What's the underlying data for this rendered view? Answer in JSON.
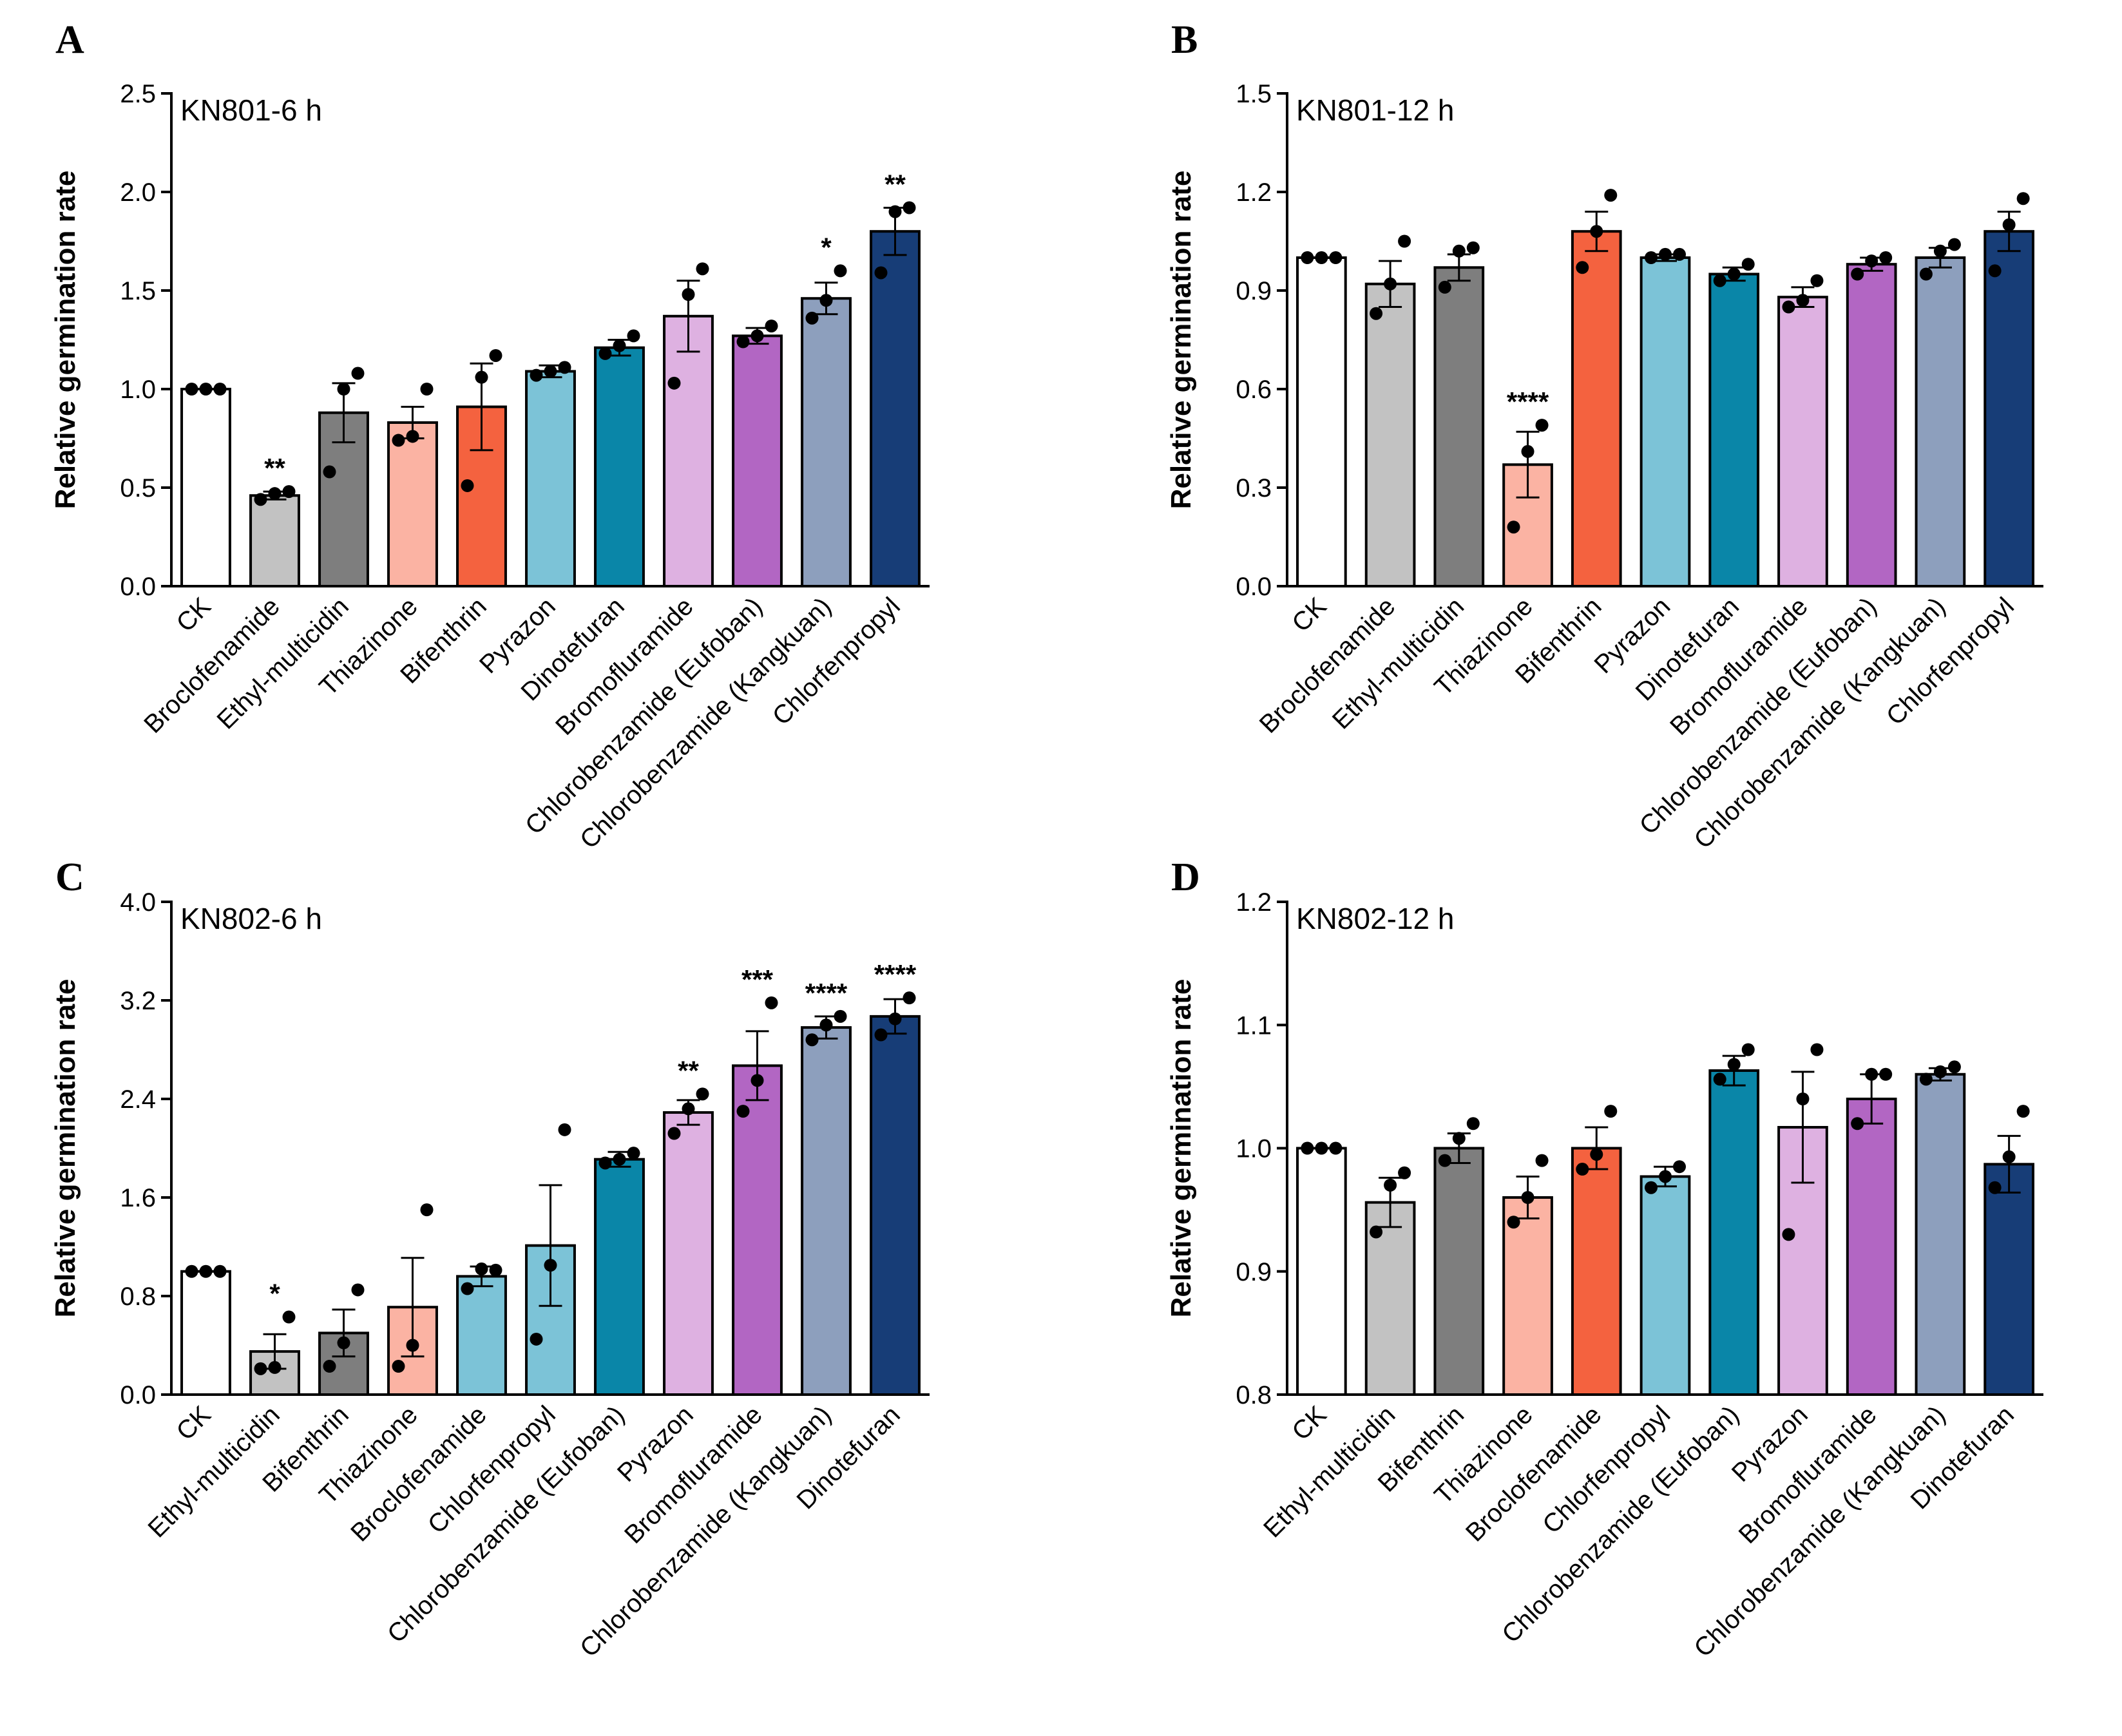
{
  "chart_data": [
    {
      "panel": "A",
      "title": "KN801-6 h",
      "type": "bar",
      "ylabel": "Relative germination rate",
      "xlabel": "",
      "ylim": [
        0,
        2.5
      ],
      "yticks": [
        "0.0",
        "0.5",
        "1.0",
        "1.5",
        "2.0",
        "2.5"
      ],
      "categories": [
        "CK",
        "Broclofenamide",
        "Ethyl-multicidin",
        "Thiazinone",
        "Bifenthrin",
        "Pyrazon",
        "Dinotefuran",
        "Bromofluramide",
        "Chlorobenzamide (Eufoban)",
        "Chlorobenzamide (Kangkuan)",
        "Chlorfenpropyl"
      ],
      "colors": [
        "#ffffff",
        "#c2c2c2",
        "#7e7e7e",
        "#fbb3a3",
        "#f4623f",
        "#7cc3d7",
        "#0a86a8",
        "#deb1e1",
        "#b266c3",
        "#8d9fbd",
        "#173d77"
      ],
      "values": [
        1.0,
        0.46,
        0.88,
        0.83,
        0.91,
        1.09,
        1.21,
        1.37,
        1.27,
        1.46,
        1.8
      ],
      "errors": [
        0.0,
        0.02,
        0.15,
        0.08,
        0.22,
        0.03,
        0.04,
        0.18,
        0.04,
        0.08,
        0.12
      ],
      "points": [
        [
          1.0,
          1.0,
          1.0
        ],
        [
          0.44,
          0.47,
          0.48
        ],
        [
          0.58,
          1.0,
          1.08
        ],
        [
          0.74,
          0.76,
          1.0
        ],
        [
          0.51,
          1.06,
          1.17
        ],
        [
          1.07,
          1.09,
          1.11
        ],
        [
          1.18,
          1.22,
          1.27
        ],
        [
          1.03,
          1.48,
          1.61
        ],
        [
          1.24,
          1.27,
          1.32
        ],
        [
          1.36,
          1.45,
          1.6
        ],
        [
          1.59,
          1.9,
          1.92
        ]
      ],
      "significance": [
        "",
        "**",
        "",
        "",
        "",
        "",
        "",
        "",
        "",
        "*",
        "**"
      ]
    },
    {
      "panel": "B",
      "title": "KN801-12 h",
      "type": "bar",
      "ylabel": "Relative germination rate",
      "xlabel": "",
      "ylim": [
        0,
        1.5
      ],
      "yticks": [
        "0.0",
        "0.3",
        "0.6",
        "0.9",
        "1.2",
        "1.5"
      ],
      "categories": [
        "CK",
        "Broclofenamide",
        "Ethyl-multicidin",
        "Thiazinone",
        "Bifenthrin",
        "Pyrazon",
        "Dinotefuran",
        "Bromofluramide",
        "Chlorobenzamide (Eufoban)",
        "Chlorobenzamide (Kangkuan)",
        "Chlorfenpropyl"
      ],
      "colors": [
        "#ffffff",
        "#c2c2c2",
        "#7e7e7e",
        "#fbb3a3",
        "#f4623f",
        "#7cc3d7",
        "#0a86a8",
        "#deb1e1",
        "#b266c3",
        "#8d9fbd",
        "#173d77"
      ],
      "values": [
        1.0,
        0.92,
        0.97,
        0.37,
        1.08,
        1.0,
        0.95,
        0.88,
        0.98,
        1.0,
        1.08
      ],
      "errors": [
        0.0,
        0.07,
        0.04,
        0.1,
        0.06,
        0.01,
        0.02,
        0.03,
        0.02,
        0.03,
        0.06
      ],
      "points": [
        [
          1.0,
          1.0,
          1.0
        ],
        [
          0.83,
          0.92,
          1.05
        ],
        [
          0.91,
          1.02,
          1.03
        ],
        [
          0.18,
          0.41,
          0.49
        ],
        [
          0.97,
          1.08,
          1.19
        ],
        [
          1.0,
          1.01,
          1.01
        ],
        [
          0.93,
          0.95,
          0.98
        ],
        [
          0.85,
          0.87,
          0.93
        ],
        [
          0.95,
          0.99,
          1.0
        ],
        [
          0.95,
          1.02,
          1.04
        ],
        [
          0.96,
          1.1,
          1.18
        ]
      ],
      "significance": [
        "",
        "",
        "",
        "****",
        "",
        "",
        "",
        "",
        "",
        "",
        ""
      ]
    },
    {
      "panel": "C",
      "title": "KN802-6 h",
      "type": "bar",
      "ylabel": "Relative germination rate",
      "xlabel": "",
      "ylim": [
        0,
        4.0
      ],
      "yticks": [
        "0.0",
        "0.8",
        "1.6",
        "2.4",
        "3.2",
        "4.0"
      ],
      "categories": [
        "CK",
        "Ethyl-multicidin",
        "Bifenthrin",
        "Thiazinone",
        "Broclofenamide",
        "Chlorfenpropyl",
        "Chlorobenzamide (Eufoban)",
        "Pyrazon",
        "Bromofluramide",
        "Chlorobenzamide (Kangkuan)",
        "Dinotefuran"
      ],
      "colors": [
        "#ffffff",
        "#c2c2c2",
        "#7e7e7e",
        "#fbb3a3",
        "#7cc3d7",
        "#7cc3d7",
        "#0a86a8",
        "#deb1e1",
        "#b266c3",
        "#8d9fbd",
        "#173d77"
      ],
      "values": [
        1.0,
        0.35,
        0.5,
        0.71,
        0.96,
        1.21,
        1.91,
        2.29,
        2.67,
        2.98,
        3.07
      ],
      "errors": [
        0.0,
        0.14,
        0.19,
        0.4,
        0.08,
        0.49,
        0.06,
        0.1,
        0.28,
        0.09,
        0.14
      ],
      "points": [
        [
          1.0,
          1.0,
          1.0
        ],
        [
          0.21,
          0.22,
          0.63
        ],
        [
          0.23,
          0.42,
          0.85
        ],
        [
          0.23,
          0.4,
          1.5
        ],
        [
          0.86,
          1.02,
          1.01
        ],
        [
          0.45,
          1.05,
          2.15
        ],
        [
          1.88,
          1.91,
          1.96
        ],
        [
          2.12,
          2.32,
          2.44
        ],
        [
          2.3,
          2.55,
          3.18
        ],
        [
          2.88,
          3.0,
          3.07
        ],
        [
          2.92,
          3.05,
          3.22
        ]
      ],
      "significance": [
        "",
        "*",
        "",
        "",
        "",
        "",
        "",
        "**",
        "***",
        "****",
        "****"
      ]
    },
    {
      "panel": "D",
      "title": "KN802-12 h",
      "type": "bar",
      "ylabel": "Relative germination rate",
      "xlabel": "",
      "ylim": [
        0.8,
        1.2
      ],
      "yticks": [
        "0.8",
        "0.9",
        "1.0",
        "1.1",
        "1.2"
      ],
      "categories": [
        "CK",
        "Ethyl-multicidin",
        "Bifenthrin",
        "Thiazinone",
        "Broclofenamide",
        "Chlorfenpropyl",
        "Chlorobenzamide (Eufoban)",
        "Pyrazon",
        "Bromofluramide",
        "Chlorobenzamide (Kangkuan)",
        "Dinotefuran"
      ],
      "colors": [
        "#ffffff",
        "#c2c2c2",
        "#7e7e7e",
        "#fbb3a3",
        "#f4623f",
        "#7cc3d7",
        "#0a86a8",
        "#deb1e1",
        "#b266c3",
        "#8d9fbd",
        "#173d77"
      ],
      "values": [
        1.0,
        0.956,
        1.0,
        0.96,
        1.0,
        0.977,
        1.063,
        1.017,
        1.04,
        1.06,
        0.987
      ],
      "errors": [
        0.0,
        0.02,
        0.012,
        0.017,
        0.017,
        0.008,
        0.012,
        0.045,
        0.02,
        0.005,
        0.023
      ],
      "points": [
        [
          1.0,
          1.0,
          1.0
        ],
        [
          0.932,
          0.97,
          0.98
        ],
        [
          0.99,
          1.008,
          1.02
        ],
        [
          0.94,
          0.96,
          0.99
        ],
        [
          0.983,
          0.995,
          1.03
        ],
        [
          0.968,
          0.977,
          0.985
        ],
        [
          1.056,
          1.068,
          1.08
        ],
        [
          0.93,
          1.04,
          1.08
        ],
        [
          1.02,
          1.06,
          1.06
        ],
        [
          1.056,
          1.062,
          1.066
        ],
        [
          0.968,
          0.993,
          1.03
        ]
      ],
      "significance": [
        "",
        "",
        "",
        "",
        "",
        "",
        "",
        "",
        "",
        "",
        ""
      ]
    }
  ]
}
